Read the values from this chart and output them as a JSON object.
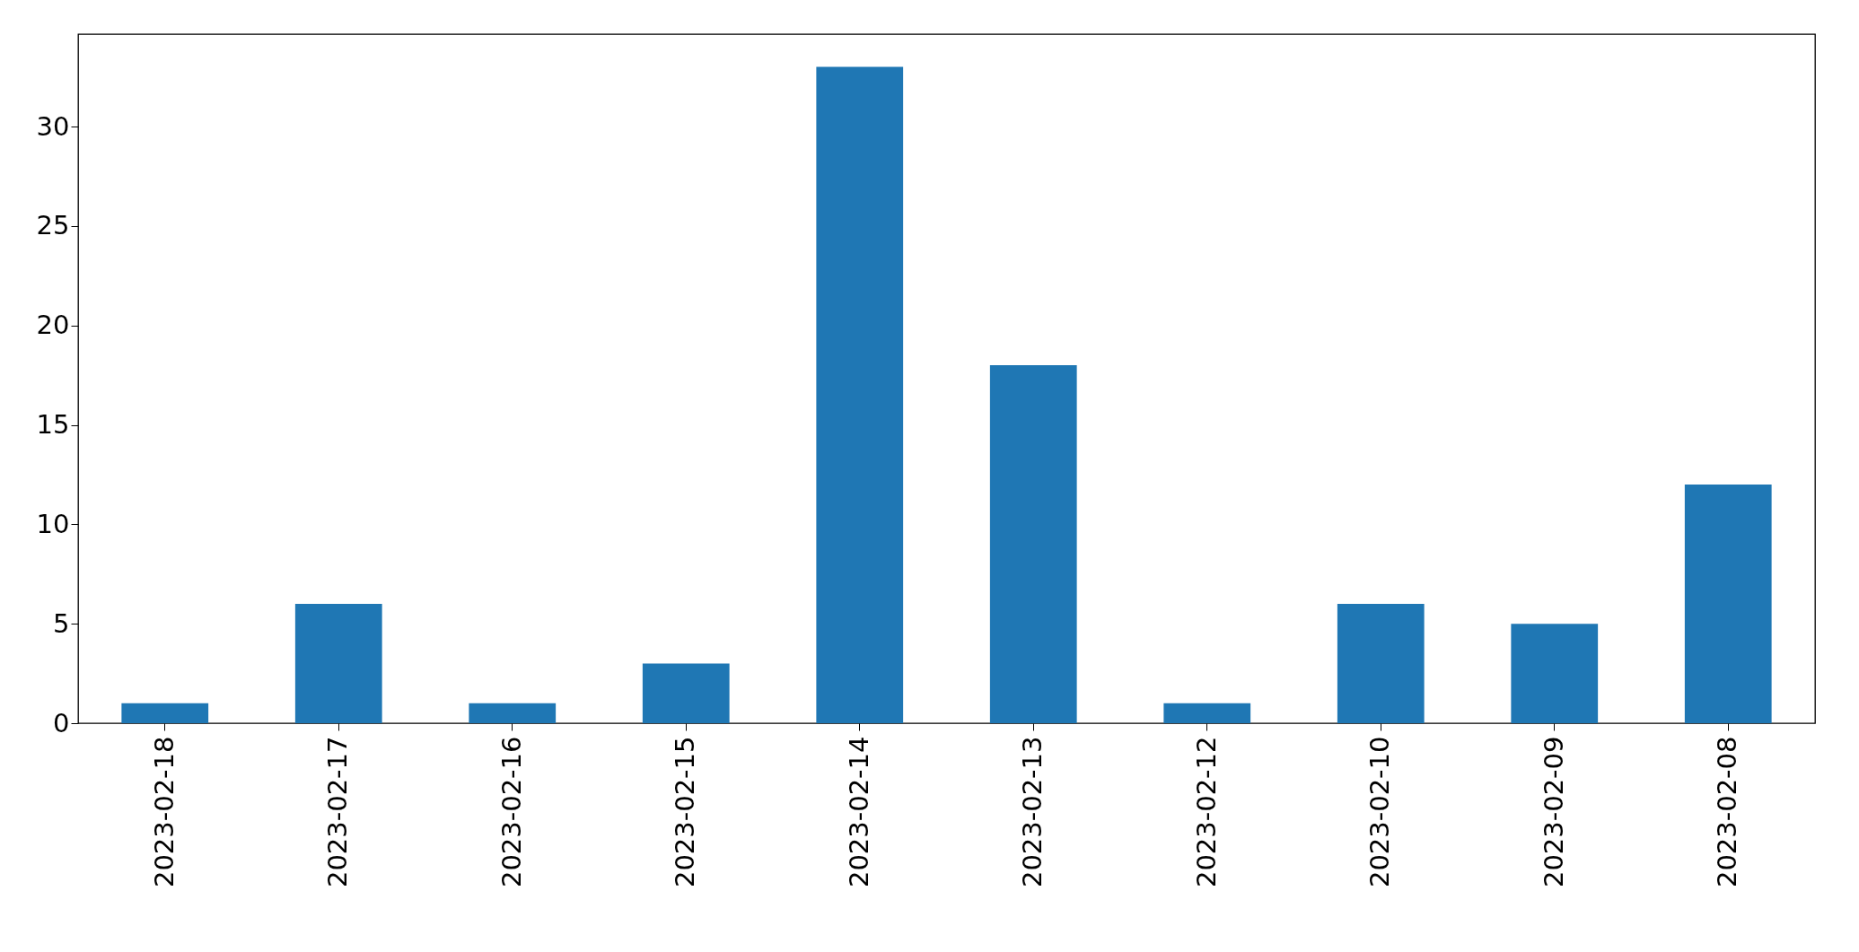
{
  "chart_data": {
    "type": "bar",
    "categories": [
      "2023-02-18",
      "2023-02-17",
      "2023-02-16",
      "2023-02-15",
      "2023-02-14",
      "2023-02-13",
      "2023-02-12",
      "2023-02-10",
      "2023-02-09",
      "2023-02-08"
    ],
    "values": [
      1,
      6,
      1,
      3,
      33,
      18,
      1,
      6,
      5,
      12
    ],
    "color": "#1f77b4",
    "ylim": [
      0,
      34.65
    ],
    "yticks": [
      0,
      5,
      10,
      15,
      20,
      25,
      30
    ],
    "grid": false
  }
}
